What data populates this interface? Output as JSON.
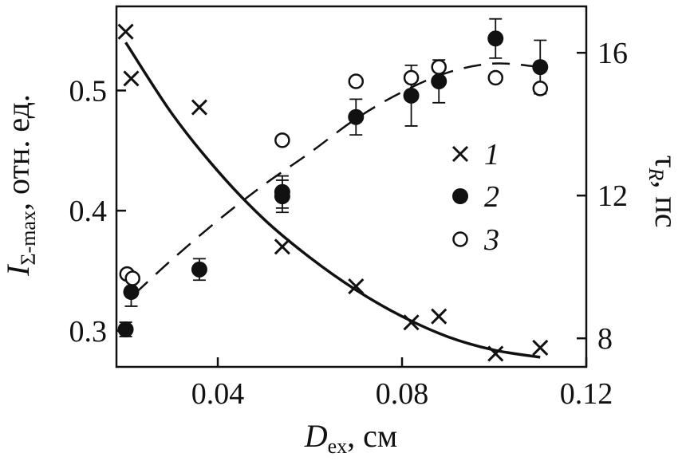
{
  "chart_data": {
    "type": "scatter",
    "title": "",
    "xlabel": {
      "main": "D",
      "sub": "ex",
      "unit": ", см"
    },
    "ylabel_left": {
      "main": "I",
      "sub": "Σ-max",
      "unit": ", отн. ед."
    },
    "ylabel_right": {
      "main": "τ",
      "sub": "R",
      "unit": ", пс"
    },
    "xlim": [
      0.018,
      0.12
    ],
    "ylim_left": [
      0.27,
      0.57
    ],
    "ylim_right": [
      7.2,
      17.3
    ],
    "x_ticks": [
      0.04,
      0.08,
      0.12
    ],
    "x_tick_labels": [
      "0.04",
      "0.08",
      "0.12"
    ],
    "y_left_ticks": [
      0.3,
      0.4,
      0.5
    ],
    "y_left_tick_labels": [
      "0.3",
      "0.4",
      "0.5"
    ],
    "y_right_ticks": [
      8,
      12,
      16
    ],
    "y_right_tick_labels": [
      "8",
      "12",
      "16"
    ],
    "legend": {
      "placement": "center-right",
      "entries": [
        "1",
        "2",
        "3"
      ]
    },
    "series": [
      {
        "name": "1",
        "marker": "cross",
        "axis": "left",
        "points": [
          [
            0.02,
            0.549
          ],
          [
            0.0212,
            0.51
          ],
          [
            0.036,
            0.486
          ],
          [
            0.054,
            0.37
          ],
          [
            0.07,
            0.337
          ],
          [
            0.082,
            0.307
          ],
          [
            0.088,
            0.312
          ],
          [
            0.1003,
            0.281
          ],
          [
            0.11,
            0.286
          ]
        ]
      },
      {
        "name": "2",
        "marker": "filled-circle",
        "axis": "right",
        "points": [
          [
            0.02,
            8.25
          ],
          [
            0.0212,
            9.3
          ],
          [
            0.036,
            9.93
          ],
          [
            0.054,
            11.98
          ],
          [
            0.054,
            12.1
          ],
          [
            0.07,
            14.2
          ],
          [
            0.082,
            14.8
          ],
          [
            0.088,
            15.2
          ],
          [
            0.1003,
            16.4
          ],
          [
            0.11,
            15.6
          ]
        ],
        "error": [
          0.2,
          0.4,
          0.3,
          0.45,
          0.45,
          0.5,
          0.85,
          0.6,
          0.55,
          0.75
        ]
      },
      {
        "name": "3",
        "marker": "open-circle",
        "axis": "right",
        "points": [
          [
            0.0203,
            9.8
          ],
          [
            0.0215,
            9.68
          ],
          [
            0.054,
            13.55
          ],
          [
            0.07,
            15.2
          ],
          [
            0.082,
            15.3
          ],
          [
            0.088,
            15.6
          ],
          [
            0.1003,
            15.3
          ],
          [
            0.11,
            15.0
          ]
        ]
      }
    ],
    "fit_lines": [
      {
        "for_series": "1",
        "style": "solid",
        "axis": "left",
        "points": [
          [
            0.02,
            0.54
          ],
          [
            0.03,
            0.481
          ],
          [
            0.04,
            0.433
          ],
          [
            0.05,
            0.393
          ],
          [
            0.06,
            0.361
          ],
          [
            0.07,
            0.334
          ],
          [
            0.08,
            0.312
          ],
          [
            0.09,
            0.295
          ],
          [
            0.1,
            0.284
          ],
          [
            0.11,
            0.278
          ]
        ]
      },
      {
        "for_series": "2",
        "style": "dashed",
        "axis": "right",
        "points": [
          [
            0.022,
            9.25
          ],
          [
            0.03,
            10.2
          ],
          [
            0.04,
            11.3
          ],
          [
            0.05,
            12.3
          ],
          [
            0.06,
            13.2
          ],
          [
            0.07,
            14.15
          ],
          [
            0.08,
            14.9
          ],
          [
            0.09,
            15.45
          ],
          [
            0.1,
            15.7
          ],
          [
            0.11,
            15.6
          ]
        ]
      }
    ]
  }
}
